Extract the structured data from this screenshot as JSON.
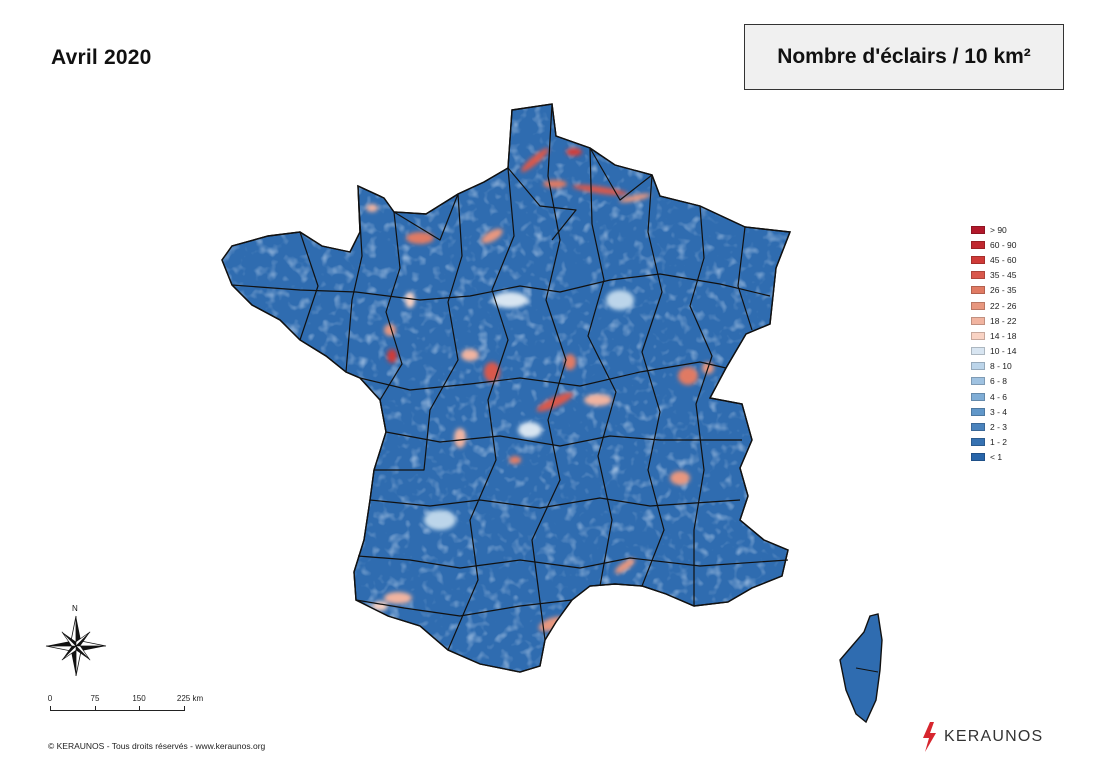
{
  "header": {
    "period": "Avril 2020",
    "map_title": "Nombre d'éclairs / 10 km²"
  },
  "legend": {
    "classes": [
      {
        "label": "> 90",
        "color": "#b2182b"
      },
      {
        "label": "60 - 90",
        "color": "#c0282f"
      },
      {
        "label": "45 - 60",
        "color": "#cf3a38"
      },
      {
        "label": "35 - 45",
        "color": "#d9584c"
      },
      {
        "label": "26 - 35",
        "color": "#e07a63"
      },
      {
        "label": "22 - 26",
        "color": "#e8977f"
      },
      {
        "label": "18 - 22",
        "color": "#f1b4a0"
      },
      {
        "label": "14 - 18",
        "color": "#f9d3c4"
      },
      {
        "label": "10 - 14",
        "color": "#d8e5f1"
      },
      {
        "label": "8 - 10",
        "color": "#bcd5ea"
      },
      {
        "label": "6 - 8",
        "color": "#9fc2e1"
      },
      {
        "label": "4 - 6",
        "color": "#7fadd6"
      },
      {
        "label": "3 - 4",
        "color": "#6197c9"
      },
      {
        "label": "2 - 3",
        "color": "#4a83bd"
      },
      {
        "label": "1 - 2",
        "color": "#3672b2"
      },
      {
        "label": "< 1",
        "color": "#2765aa"
      }
    ]
  },
  "compass": {
    "north_label": "N"
  },
  "scale_bar": {
    "ticks": [
      "0",
      "75",
      "150",
      "225 km"
    ]
  },
  "footer": {
    "copyright": "© KERAUNOS - Tous droits réservés - www.keraunos.org",
    "brand": "KERAUNOS",
    "brand_color": "#d7262e"
  },
  "map": {
    "base_color": "#2f6cb0",
    "border_color": "#111111"
  }
}
